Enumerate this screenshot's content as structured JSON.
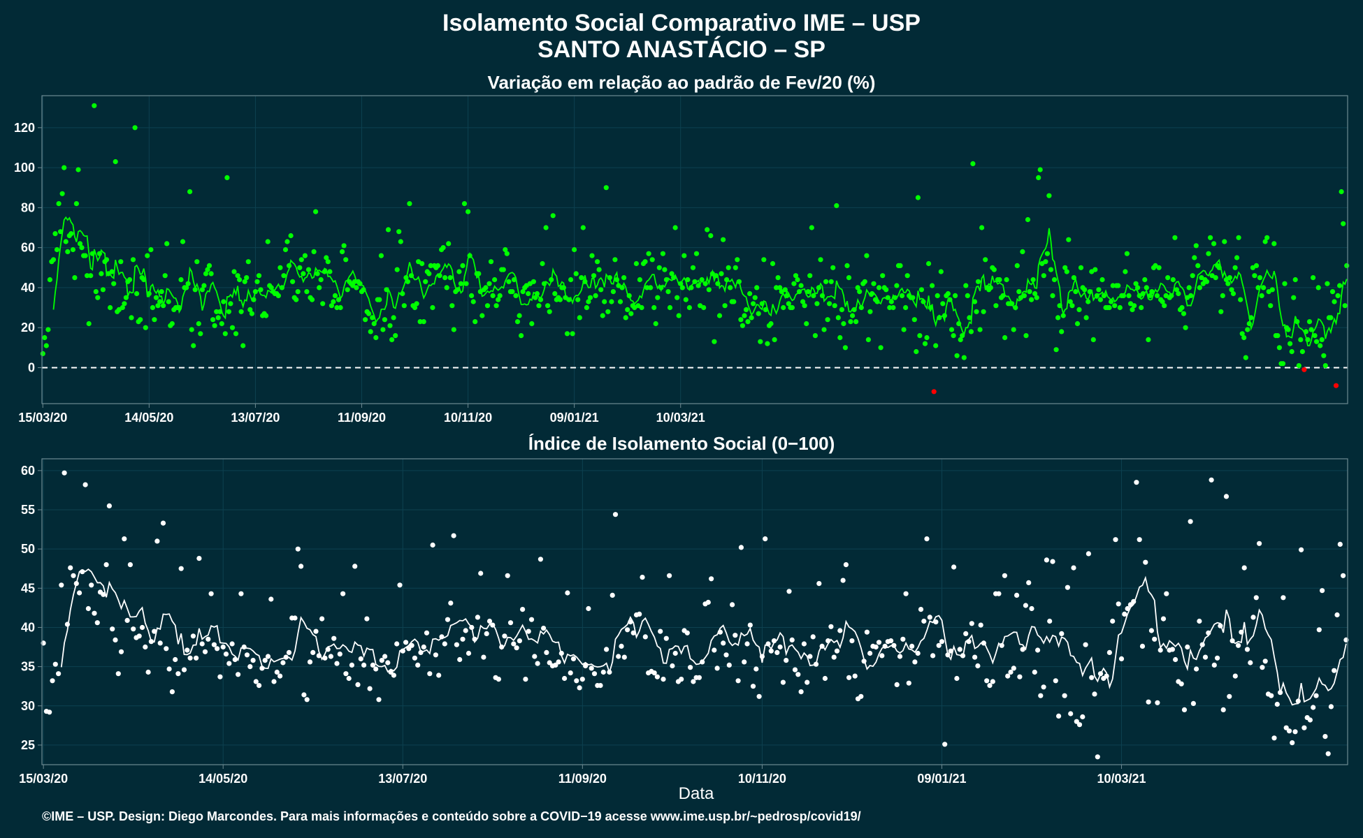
{
  "header": {
    "title_line1": "Isolamento Social Comparativo IME – USP",
    "title_line2": "SANTO ANASTÁCIO – SP"
  },
  "footer": {
    "credit": "©IME – USP. Design: Diego Marcondes. Para mais informações e conteúdo sobre a COVID−19 acesse www.ime.usp.br/~pedrosp/covid19/"
  },
  "colors": {
    "background": "#022a36",
    "panel_border": "#6e8a92",
    "grid": "#0d4150",
    "panel1_points": "#00ff00",
    "panel1_negative": "#ff0000",
    "panel2_points": "#ffffff",
    "zero_line": "#ffffff"
  },
  "chart_data": [
    {
      "type": "scatter",
      "title": "Variação em relação ao padrão de Fev/20 (%)",
      "xlabel": "",
      "ylabel": "",
      "x_range": [
        "2020-03-15",
        "2021-03-11"
      ],
      "ylim": [
        -18,
        136
      ],
      "yticks": [
        0,
        20,
        40,
        60,
        80,
        100,
        120
      ],
      "xtick_labels": [
        "15/03/20",
        "14/05/20",
        "13/07/20",
        "11/09/20",
        "10/11/20",
        "09/01/21",
        "10/03/21"
      ],
      "reference_line": 0,
      "smoothing": "7-day moving average line",
      "grid": true,
      "values": [
        7,
        15,
        11,
        19,
        44,
        53,
        54,
        67,
        59,
        82,
        68,
        87,
        100,
        63,
        58,
        66,
        67,
        59,
        45,
        82,
        99,
        62,
        60,
        56,
        56,
        46,
        22,
        46,
        57,
        131,
        38,
        35,
        57,
        47,
        39,
        53,
        54,
        47,
        30,
        48,
        42,
        103,
        28,
        29,
        53,
        30,
        32,
        35,
        43,
        44,
        25,
        54,
        120,
        37,
        23,
        24,
        45,
        44,
        20,
        56,
        37,
        59,
        30,
        24,
        35,
        31,
        33,
        38,
        31,
        46,
        62,
        33,
        21,
        22,
        29,
        30,
        30,
        30,
        44,
        63,
        40,
        40,
        42,
        88,
        19,
        11,
        39,
        53,
        22,
        17,
        39,
        41,
        47,
        49,
        51,
        47,
        24,
        21,
        28,
        25,
        28,
        22,
        33,
        17,
        95,
        28,
        32,
        20,
        48,
        17,
        46,
        44,
        28,
        11,
        43,
        45,
        53,
        29,
        27,
        34,
        38,
        43,
        46,
        39,
        26,
        27,
        26,
        63,
        41,
        40,
        38,
        37,
        37,
        36,
        50,
        40,
        46,
        59,
        63,
        51,
        66,
        43,
        35,
        34,
        38,
        50,
        54,
        47,
        56,
        38,
        49,
        35,
        34,
        58,
        78,
        47,
        40,
        44,
        32,
        48,
        55,
        53,
        48,
        31,
        33,
        36,
        30,
        34,
        30,
        58,
        61,
        54,
        39,
        43,
        42,
        41,
        43,
        40,
        43,
        42,
        38,
        39,
        24,
        28,
        27,
        18,
        25,
        22,
        15,
        34,
        34,
        56,
        19,
        24,
        39,
        69,
        21,
        14,
        25,
        16,
        49,
        68,
        63,
        37,
        31,
        45,
        43,
        82,
        46,
        31,
        30,
        32,
        53,
        23,
        52,
        23,
        43,
        48,
        47,
        51,
        30,
        51,
        50,
        51,
        46,
        59,
        60,
        45,
        40,
        62,
        45,
        31,
        19,
        38,
        39,
        48,
        42,
        51,
        82,
        42,
        78,
        56,
        36,
        33,
        23,
        47,
        47,
        38,
        26,
        39,
        40,
        31,
        42,
        53,
        36,
        44,
        31,
        34,
        36,
        49,
        49,
        59,
        57,
        43,
        38,
        38,
        44,
        36,
        23,
        26,
        16,
        38,
        40,
        41,
        37,
        42,
        22,
        43,
        35,
        37,
        31,
        34,
        52,
        42,
        70,
        31,
        28,
        44,
        76,
        37,
        34,
        35,
        34,
        40,
        40,
        35,
        17,
        34,
        44,
        17,
        59,
        47,
        34,
        25,
        45,
        70,
        43,
        30,
        33,
        35,
        56,
        46,
        36,
        53,
        49,
        39,
        26,
        33,
        90,
        28,
        45,
        33,
        38,
        54,
        44,
        41,
        33,
        40,
        45,
        25,
        29,
        36,
        27,
        31,
        30,
        52,
        31,
        44,
        30,
        52,
        53,
        40,
        57,
        40,
        54,
        30,
        22,
        35,
        50,
        40,
        57,
        49,
        44,
        38,
        30,
        47,
        45,
        70,
        35,
        26,
        42,
        40,
        56,
        34,
        44,
        30,
        40,
        50,
        43,
        57,
        41,
        31,
        44,
        30,
        42,
        69,
        39,
        66,
        47,
        13,
        46,
        42,
        26,
        47,
        64,
        31,
        44,
        50,
        40,
        33,
        33,
        50,
        54,
        43,
        24,
        21,
        26,
        29,
        23,
        37,
        25,
        32,
        35,
        40,
        27,
        13,
        32,
        54,
        29,
        12,
        21,
        22,
        52,
        14,
        40,
        45,
        40,
        38,
        30,
        39,
        36,
        32,
        30,
        30,
        42,
        46,
        44,
        38,
        41,
        33,
        31,
        22,
        38,
        46,
        70,
        36,
        16,
        32,
        40,
        54,
        36,
        19,
        43,
        24,
        32,
        43,
        50,
        31,
        81,
        25,
        15,
        29,
        22,
        10,
        51,
        45,
        23,
        26,
        29,
        23,
        40,
        38,
        30,
        42,
        43,
        56,
        14,
        28,
        37,
        42,
        34,
        33,
        40,
        10,
        46,
        40,
        39,
        35,
        30,
        33,
        30,
        35,
        41,
        51,
        51,
        36,
        19,
        30,
        46,
        36,
        35,
        35,
        24,
        8,
        85,
        16,
        39,
        33,
        12,
        15,
        52,
        30,
        41,
        -12,
        11,
        36,
        25,
        48,
        32,
        26,
        36,
        37,
        34,
        19,
        16,
        36,
        6,
        22,
        14,
        16,
        5,
        41,
        36,
        25,
        18,
        102,
        33,
        28,
        43,
        19,
        70,
        28,
        54,
        40,
        39,
        40,
        50,
        49,
        31,
        44,
        44,
        35,
        36,
        15,
        44,
        32,
        32,
        32,
        19,
        30,
        51,
        38,
        35,
        58,
        36,
        16,
        74,
        38,
        34,
        44,
        37,
        35,
        95,
        99,
        52,
        46,
        53,
        57,
        86,
        49,
        36,
        44,
        9,
        25,
        31,
        18,
        26,
        50,
        48,
        64,
        33,
        31,
        45,
        38,
        22,
        29,
        50,
        40,
        39,
        25,
        33,
        38,
        48,
        14,
        49,
        36,
        39,
        34,
        44,
        36,
        30,
        30,
        30,
        33,
        41,
        31,
        41,
        41,
        30,
        36,
        36,
        48,
        57,
        36,
        32,
        29,
        31,
        42,
        40,
        36,
        30,
        37,
        44,
        40,
        14,
        36,
        38,
        50,
        51,
        36,
        50,
        34,
        33,
        31,
        36,
        45,
        35,
        36,
        44,
        65,
        39,
        37,
        29,
        30,
        27,
        20,
        35,
        40,
        36,
        46,
        55,
        61,
        51,
        40,
        45,
        42,
        44,
        43,
        57,
        65,
        46,
        62,
        45,
        51,
        50,
        28,
        36,
        63,
        44,
        42,
        45,
        39,
        37,
        50,
        55,
        65,
        34,
        17,
        15,
        5,
        19,
        22,
        25,
        50,
        46,
        51,
        40,
        45,
        36,
        40,
        63,
        65,
        38,
        31,
        39,
        62,
        16,
        16,
        10,
        2,
        2,
        42,
        20,
        19,
        12,
        8,
        35,
        44,
        23,
        1,
        14,
        8,
        -1,
        18,
        14,
        23,
        19,
        45,
        16,
        13,
        40,
        11,
        14,
        6,
        1,
        42,
        25,
        25,
        38,
        33,
        -9,
        36,
        41,
        88,
        72,
        31,
        51
      ]
    },
    {
      "type": "scatter",
      "title": "Índice de Isolamento Social (0−100)",
      "xlabel": "Data",
      "ylabel": "",
      "x_range": [
        "2020-03-15",
        "2021-03-11"
      ],
      "ylim": [
        22.5,
        61.5
      ],
      "yticks": [
        25,
        30,
        35,
        40,
        45,
        50,
        55,
        60
      ],
      "xtick_labels": [
        "15/03/20",
        "14/05/20",
        "13/07/20",
        "11/09/20",
        "10/11/20",
        "09/01/21",
        "10/03/21"
      ],
      "smoothing": "7-day moving average line",
      "grid": true,
      "values": [
        38,
        29.3,
        29.2,
        33.2,
        35.3,
        34.1,
        45.4,
        59.7,
        40.4,
        47.6,
        46.6,
        45.6,
        44.4,
        47.1,
        58.2,
        42.4,
        45.4,
        41.8,
        40.6,
        44.5,
        44.2,
        48,
        55.5,
        39.8,
        38.4,
        34.1,
        36.9,
        51.3,
        40.9,
        48,
        39.8,
        38.7,
        38.9,
        40,
        37.5,
        34.3,
        38.2,
        39.5,
        51,
        38,
        53.3,
        37.3,
        34.7,
        31.8,
        35.9,
        34.1,
        47.5,
        34.6,
        37.1,
        36.1,
        38.9,
        36.1,
        48.8,
        37.9,
        36.9,
        38.5,
        44.3,
        37.8,
        37.3,
        33.7,
        37.5,
        36.6,
        35.4,
        37.9,
        35.9,
        34,
        44.3,
        37.5,
        36.5,
        35,
        35.8,
        33.1,
        32.6,
        34.8,
        35.8,
        36.3,
        43.6,
        33.1,
        34.3,
        33.8,
        35.5,
        36.2,
        36.8,
        41.2,
        41.2,
        50,
        47.8,
        31.4,
        30.8,
        35.6,
        36.8,
        39.5,
        36.4,
        41.1,
        36.1,
        37.2,
        36.3,
        38.6,
        35.4,
        36.6,
        44.3,
        34.1,
        33.5,
        35.2,
        47.8,
        32.7,
        36,
        35.2,
        41.1,
        32.2,
        35.2,
        34.7,
        30.8,
        35.8,
        36.3,
        35.5,
        34.3,
        33.9,
        37.9,
        45.4,
        37,
        38.1,
        37.3,
        37.7,
        36.1,
        35.2,
        36.8,
        37.5,
        39.3,
        34.1,
        50.5,
        36.5,
        33.9,
        38.8,
        37.9,
        41,
        43.1,
        51.7,
        37.8,
        35.9,
        38.5,
        39.6,
        36.7,
        40,
        38.5,
        41.3,
        46.9,
        36.2,
        39.2,
        40.8,
        40.3,
        33.6,
        33.4,
        37.5,
        38.9,
        46.6,
        40.6,
        37.9,
        37.4,
        38.3,
        42.3,
        33.4,
        39.5,
        41,
        36.3,
        35.4,
        48.7,
        39.9,
        36.8,
        35.5,
        35.1,
        35.2,
        35.6,
        36.7,
        33.5,
        44.4,
        34.2,
        36,
        33.2,
        32.3,
        33.4,
        35.1,
        42.4,
        34.8,
        34.1,
        32.6,
        32.6,
        34.3,
        37.2,
        34.3,
        44.1,
        54.4,
        36.3,
        37.6,
        36.2,
        39.7,
        40.7,
        39.3,
        41.6,
        41.7,
        46.4,
        38.8,
        34.2,
        34.4,
        34.2,
        33.7,
        39.5,
        33.4,
        38.6,
        46.6,
        35.1,
        36.7,
        33.1,
        33.4,
        39.6,
        39.3,
        34.9,
        33.1,
        33.6,
        33.6,
        35.6,
        43,
        43.2,
        46.2,
        37.1,
        34.8,
        39.4,
        38,
        36.5,
        35.2,
        42.9,
        39,
        33.2,
        50.2,
        35.6,
        37.9,
        40.3,
        32.5,
        34.7,
        31.2,
        36.3,
        51.3,
        37.9,
        37,
        38.3,
        36.8,
        37.5,
        33,
        35.8,
        44.6,
        38.4,
        34.6,
        34,
        31.8,
        37.9,
        33,
        36.3,
        38.8,
        35.3,
        45.6,
        37.6,
        33.5,
        38.3,
        40.1,
        36.2,
        37,
        39.6,
        46,
        48,
        33.6,
        38.3,
        33.8,
        30.9,
        31.2,
        35.7,
        39.4,
        36.7,
        37.6,
        37.5,
        38.1,
        36.4,
        37.6,
        38.2,
        38.3,
        37.7,
        32.7,
        36.3,
        38.5,
        44.3,
        32.9,
        37.6,
        35.6,
        36.7,
        42.3,
        40.8,
        51.3,
        41.3,
        36.4,
        40.7,
        37.7,
        38.2,
        25.1,
        36.5,
        37,
        47.7,
        33.5,
        37.2,
        36.4,
        39.2,
        38.2,
        40.5,
        36.2,
        35.1,
        40.3,
        38,
        33.2,
        32.6,
        33.1,
        44.3,
        44.3,
        37.7,
        46.6,
        33.8,
        34.3,
        34.8,
        44.1,
        33.7,
        37.2,
        42.8,
        45.7,
        42.4,
        34.3,
        37.1,
        31.3,
        32.4,
        48.6,
        40.8,
        48.4,
        33.2,
        28.7,
        39.2,
        31.3,
        45.1,
        29,
        47.6,
        28,
        27.6,
        28.6,
        37.8,
        49.4,
        33.6,
        31.5,
        23.5,
        34.1,
        33.5,
        33.8,
        36.8,
        40.8,
        51.2,
        43,
        36,
        41.7,
        42.4,
        42.9,
        43.3,
        58.5,
        51.2,
        37.6,
        48.3,
        30.5,
        39.6,
        38.5,
        30.4,
        37.1,
        41.1,
        44.3,
        37.1,
        37.2,
        35.9,
        33.1,
        32.8,
        29.5,
        37.5,
        53.5,
        30.3,
        34.7,
        40.8,
        37.8,
        36.2,
        39.3,
        58.8,
        35.2,
        36.1,
        40.2,
        29.5,
        56.7,
        31.2,
        38.3,
        33.8,
        37.7,
        39.4,
        47.6,
        37.2,
        35.5,
        41.3,
        43.8,
        50.7,
        34.9,
        35.7,
        31.5,
        31.3,
        25.9,
        30.2,
        31.7,
        43.8,
        27.2,
        26.8,
        25.3,
        26.7,
        30.6,
        49.9,
        27.2,
        28.5,
        28.2,
        29.8,
        31.3,
        39.7,
        44.7,
        26.1,
        23.9,
        29.9,
        34.5,
        41.6,
        50.6,
        46.6,
        38.4
      ]
    }
  ]
}
